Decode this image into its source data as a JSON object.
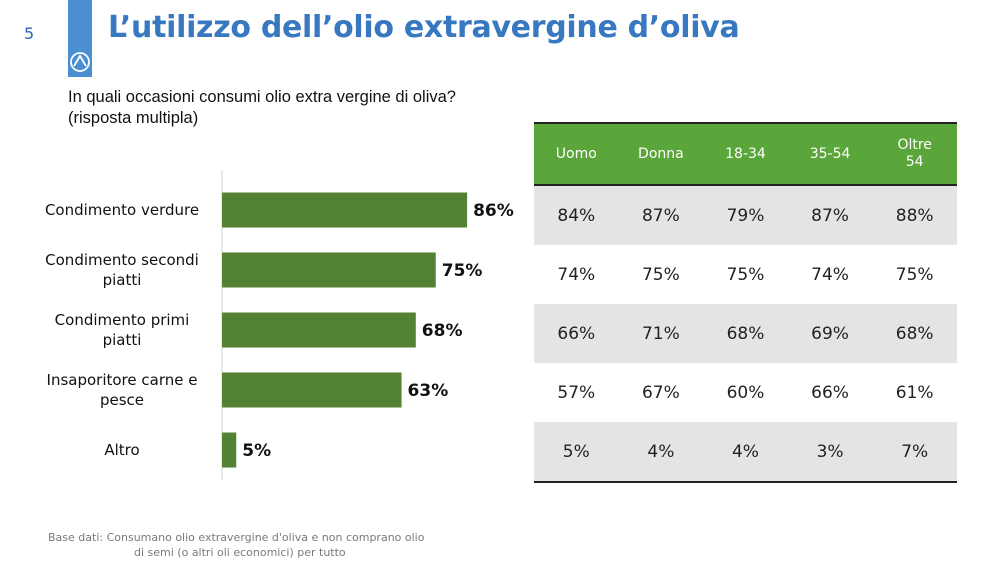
{
  "slide_number": "5",
  "title": "L’utilizzo dell’olio extravergine d’oliva",
  "question": "In quali occasioni consumi olio extra vergine di oliva? (risposta multipla)",
  "colors": {
    "bar": "#548235",
    "table_header": "#5aa63a",
    "title": "#3878c0",
    "accent": "#4a8fcf"
  },
  "chart_data": {
    "type": "bar",
    "orientation": "horizontal",
    "categories": [
      [
        "Condimento verdure"
      ],
      [
        "Condimento secondi",
        "piatti"
      ],
      [
        "Condimento primi",
        "piatti"
      ],
      [
        "Insaporitore carne e",
        "pesce"
      ],
      [
        "Altro"
      ]
    ],
    "values": [
      86,
      75,
      68,
      63,
      5
    ],
    "value_labels": [
      "86%",
      "75%",
      "68%",
      "63%",
      "5%"
    ],
    "xlim": [
      0,
      100
    ],
    "grid": false
  },
  "table": {
    "headers": [
      "Uomo",
      "Donna",
      "18-34",
      "35-54",
      "Oltre\n54"
    ],
    "rows": [
      [
        "84%",
        "87%",
        "79%",
        "87%",
        "88%"
      ],
      [
        "74%",
        "75%",
        "75%",
        "74%",
        "75%"
      ],
      [
        "66%",
        "71%",
        "68%",
        "69%",
        "68%"
      ],
      [
        "57%",
        "67%",
        "60%",
        "66%",
        "61%"
      ],
      [
        "5%",
        "4%",
        "4%",
        "3%",
        "7%"
      ]
    ]
  },
  "source": {
    "line1": "Base dati: Consumano olio extravergine d'oliva e non comprano olio",
    "line2": "di semi (o altri oli economici) per tutto"
  }
}
